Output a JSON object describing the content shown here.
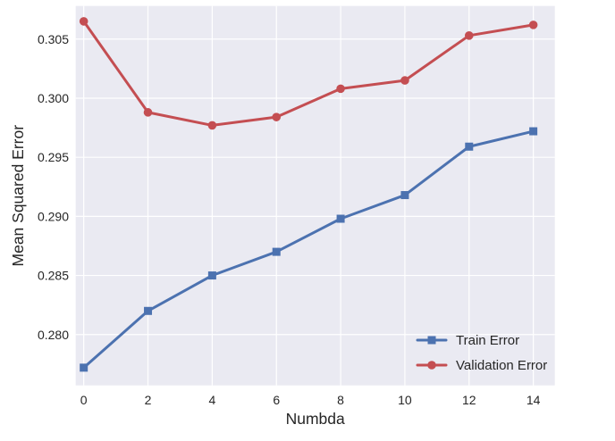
{
  "chart_data": {
    "type": "line",
    "title": "",
    "xlabel": "Numbda",
    "ylabel": "Mean Squared Error",
    "x": [
      0,
      2,
      4,
      6,
      8,
      10,
      12,
      14
    ],
    "series": [
      {
        "name": "Train Error",
        "color": "#4C72B0",
        "marker": "square",
        "values": [
          0.2772,
          0.282,
          0.285,
          0.287,
          0.2898,
          0.2918,
          0.2959,
          0.2972
        ]
      },
      {
        "name": "Validation Error",
        "color": "#C44E52",
        "marker": "circle",
        "values": [
          0.3065,
          0.2988,
          0.2977,
          0.2984,
          0.3008,
          0.3015,
          0.3053,
          0.3062
        ]
      }
    ],
    "xticks": [
      0,
      2,
      4,
      6,
      8,
      10,
      12,
      14
    ],
    "yticks": [
      0.28,
      0.285,
      0.29,
      0.295,
      0.3,
      0.305
    ],
    "ytick_decimals": 3,
    "xlim": [
      -0.25,
      14.67
    ],
    "ylim": [
      0.2757,
      0.3078
    ],
    "grid": true,
    "legend_position": "lower right",
    "plot_bg_color": "#EAEAF2",
    "grid_color": "#FFFFFF",
    "text_color": "#262626"
  }
}
